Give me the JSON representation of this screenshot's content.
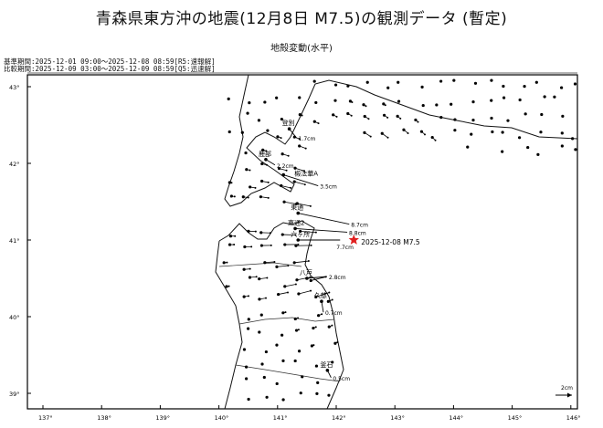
{
  "title": "青森県東方沖の地震(12月8日 M7.5)の観測データ (暫定)",
  "subtitle": "地殻変動(水平)",
  "reference_period": "基準期間:2025-12-01 09:00〜2025-12-08 08:59[R5:速報解]",
  "comparison_period": "比較期間:2025-12-09 03:00〜2025-12-09 08:59[Q5:迅速解]",
  "lon_ticks": [
    "137°",
    "138°",
    "139°",
    "140°",
    "141°",
    "142°",
    "143°",
    "144°",
    "145°",
    "146°"
  ],
  "lat_ticks": [
    "43°",
    "42°",
    "41°",
    "40°",
    "39°"
  ],
  "epicenter": {
    "label": "2025-12-08 M7.5",
    "lon": 142.3,
    "lat": 41.0,
    "color": "#e02020"
  },
  "scale": {
    "label": "2cm"
  },
  "stations": [
    {
      "name": "登別",
      "value": "1.7cm",
      "lon": 141.2,
      "lat": 42.45
    },
    {
      "name": "鹿部",
      "value": "2.2cm",
      "lon": 140.8,
      "lat": 42.05
    },
    {
      "name": "椴法華A",
      "value": "3.5cm",
      "lon": 141.1,
      "lat": 41.85
    },
    {
      "name": "東通",
      "value": "8.7cm",
      "lon": 141.35,
      "lat": 41.35
    },
    {
      "name": "東通2",
      "value": "8.8cm",
      "lon": 141.3,
      "lat": 41.15
    },
    {
      "name": "六ヶ所",
      "value": "7.7cm",
      "lon": 141.35,
      "lat": 41.0
    },
    {
      "name": "八戸",
      "value": "2.8cm",
      "lon": 141.5,
      "lat": 40.5
    },
    {
      "name": "久慈",
      "value": "0.7cm",
      "lon": 141.75,
      "lat": 40.2
    },
    {
      "name": "釜石",
      "value": "0.5cm",
      "lon": 141.85,
      "lat": 39.3
    }
  ]
}
